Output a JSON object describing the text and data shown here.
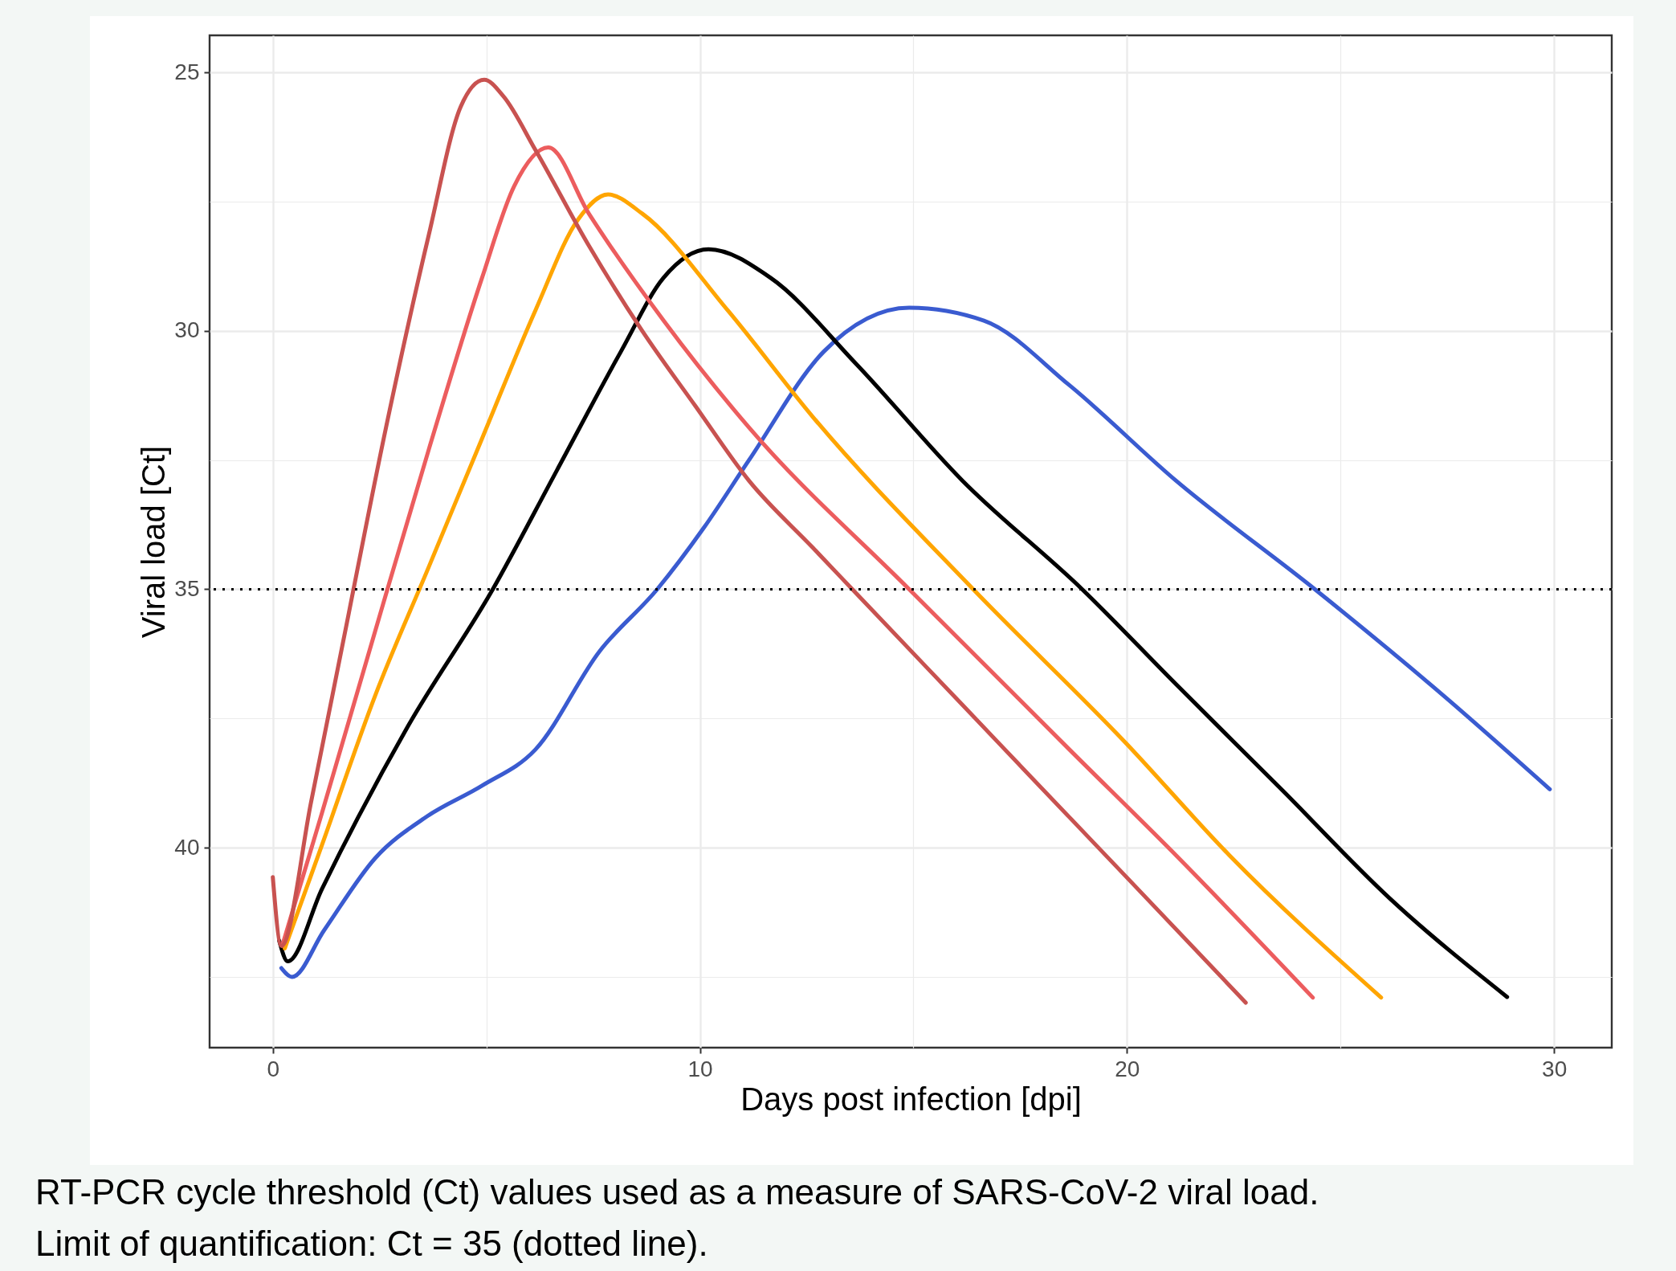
{
  "chart_data": {
    "type": "line",
    "xlabel": "Days post infection [dpi]",
    "ylabel": "Viral load [Ct]",
    "xlim": [
      -1.48,
      31.35
    ],
    "ylim": [
      43.87,
      24.28
    ],
    "xticks": [
      0,
      {
        "value": 5,
        "label": null
      },
      10,
      {
        "value": 15,
        "label": null
      },
      20,
      {
        "value": 25,
        "label": null
      },
      30
    ],
    "yticks": [
      25,
      {
        "value": 27.5,
        "label": null
      },
      30,
      {
        "value": 32.5,
        "label": null
      },
      35,
      {
        "value": 37.5,
        "label": null
      },
      40,
      {
        "value": 42.5,
        "label": null
      }
    ],
    "grid": true,
    "legend": false,
    "marker": "none",
    "line_style": "solid",
    "series": [
      {
        "color": "#3a5bd0",
        "x": [
          0.2,
          0.45,
          1.2,
          2.4,
          3.6,
          4.9,
          6.15,
          7.65,
          9.0,
          10.1,
          11.15,
          12.9,
          14.9,
          16.65,
          18.65,
          21.15,
          24.4,
          27.4,
          29.9
        ],
        "values": [
          42.33,
          42.5,
          41.6,
          40.2,
          39.4,
          38.8,
          38.1,
          36.2,
          35.0,
          33.8,
          32.5,
          30.4,
          29.55,
          29.8,
          31.05,
          32.9,
          35.0,
          37.05,
          38.87
        ]
      },
      {
        "color": "#000000",
        "x": [
          0.15,
          0.35,
          1.15,
          3.15,
          5.15,
          6.65,
          8.15,
          9.15,
          10.2,
          11.65,
          13.65,
          16.15,
          18.95,
          21.15,
          23.65,
          26.15,
          28.9
        ],
        "values": [
          41.8,
          42.2,
          40.8,
          37.67,
          35.0,
          32.7,
          30.4,
          28.97,
          28.42,
          28.97,
          30.63,
          32.9,
          35.0,
          36.84,
          38.9,
          40.98,
          42.89
        ]
      },
      {
        "color": "#ffa500",
        "x": [
          0.28,
          1.15,
          2.4,
          3.65,
          4.9,
          6.15,
          7.15,
          7.85,
          8.65,
          10.65,
          12.65,
          16.4,
          19.98,
          22.4,
          25.95
        ],
        "values": [
          41.95,
          39.95,
          37.05,
          34.57,
          32.08,
          29.6,
          27.84,
          27.36,
          27.73,
          29.6,
          31.67,
          35.0,
          37.98,
          40.15,
          42.9
        ]
      },
      {
        "color": "#ec5d5e",
        "x": [
          0.22,
          1.15,
          2.4,
          3.65,
          4.9,
          5.65,
          6.45,
          7.4,
          9.15,
          11.15,
          14.9,
          18.65,
          21.15,
          24.35
        ],
        "values": [
          41.9,
          39.33,
          35.8,
          32.3,
          28.97,
          27.2,
          26.45,
          27.73,
          29.8,
          31.87,
          35.0,
          38.1,
          40.15,
          42.9
        ]
      },
      {
        "color": "#c85250",
        "x": [
          0,
          0.2,
          0.9,
          1.65,
          2.65,
          3.65,
          4.4,
          4.95,
          5.4,
          6.15,
          7.4,
          8.65,
          9.9,
          11.15,
          12.65,
          13.65,
          16.15,
          18.65,
          20.0,
          22.78
        ],
        "values": [
          40.57,
          41.9,
          39.1,
          36.0,
          31.87,
          28.15,
          25.66,
          25.14,
          25.46,
          26.5,
          28.35,
          30.0,
          31.46,
          32.9,
          34.2,
          35.07,
          37.24,
          39.41,
          40.58,
          43.0
        ]
      }
    ],
    "ref_lines": [
      {
        "axis": "y",
        "value": 35,
        "color": "#000000",
        "line_style": "dotted"
      }
    ],
    "annotations": [
      "RT-PCR cycle threshold (Ct) values used as a measure of SARS-CoV-2 viral load.",
      "Limit of quantification: Ct = 35 (dotted line)."
    ]
  }
}
